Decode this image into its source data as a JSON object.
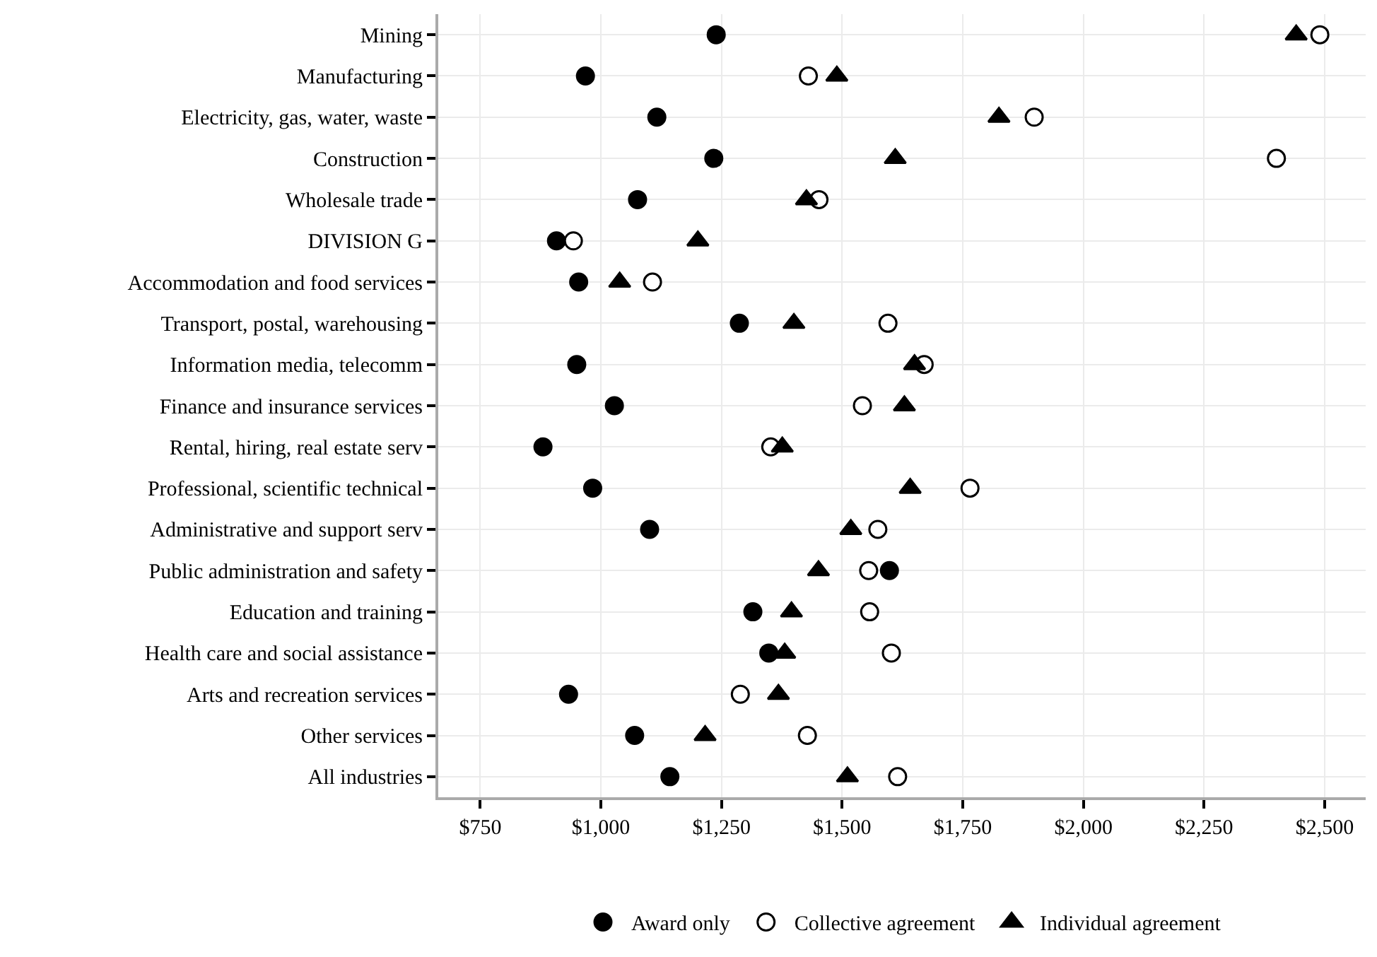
{
  "chart_data": {
    "type": "scatter",
    "categories": [
      "Mining",
      "Manufacturing",
      "Electricity, gas, water, waste",
      "Construction",
      "Wholesale trade",
      "DIVISION G",
      "Accommodation and food services",
      "Transport, postal, warehousing",
      "Information media, telecomm",
      "Finance and insurance services",
      "Rental, hiring, real estate serv",
      "Professional, scientific technical",
      "Administrative and support serv",
      "Public administration and safety",
      "Education and training",
      "Health care and social assistance",
      "Arts and recreation services",
      "Other services",
      "All industries"
    ],
    "orientation": "horizontal",
    "series": [
      {
        "name": "Award only",
        "color": "#000000",
        "marker": "circle",
        "values": [
          1239,
          968,
          1116,
          1234,
          1076,
          908,
          954,
          1287,
          950,
          1028,
          880,
          983,
          1101,
          1598,
          1315,
          1348,
          933,
          1070,
          1143
        ]
      },
      {
        "name": "Collective agreement",
        "color": "#ffffff",
        "marker": "circle",
        "values": [
          2490,
          1430,
          1898,
          2400,
          1452,
          943,
          1107,
          1595,
          1670,
          1542,
          1352,
          1765,
          1574,
          1555,
          1557,
          1602,
          1289,
          1428,
          1615
        ]
      },
      {
        "name": "Individual agreement",
        "color": "#000000",
        "marker": "triangle",
        "values": [
          2441,
          1489,
          1825,
          1610,
          1426,
          1201,
          1039,
          1400,
          1650,
          1629,
          1376,
          1641,
          1518,
          1451,
          1395,
          1381,
          1368,
          1216,
          1511
        ]
      }
    ],
    "xlim": [
      663,
      2585
    ],
    "xticks": [
      {
        "value": 750,
        "label": "$750"
      },
      {
        "value": 1000,
        "label": "$1,000"
      },
      {
        "value": 1250,
        "label": "$1,250"
      },
      {
        "value": 1500,
        "label": "$1,500"
      },
      {
        "value": 1750,
        "label": "$1,750"
      },
      {
        "value": 2000,
        "label": "$2,000"
      },
      {
        "value": 2250,
        "label": "$2,250"
      },
      {
        "value": 2500,
        "label": "$2,500"
      }
    ],
    "grid": true,
    "legend": "bottom"
  }
}
